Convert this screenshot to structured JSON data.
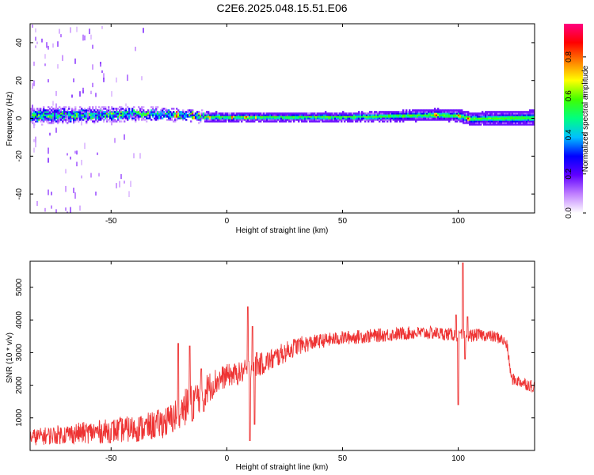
{
  "page": {
    "title": "C2E6.2025.048.15.51.E06"
  },
  "chart_data": [
    {
      "type": "heatmap",
      "xlabel": "Height of straight line (km)",
      "ylabel": "Frequency (Hz)",
      "xlim": [
        -85,
        133
      ],
      "ylim": [
        -50,
        50
      ],
      "x_ticks": [
        -50,
        0,
        50,
        100
      ],
      "y_ticks": [
        -40,
        -20,
        0,
        20,
        40
      ],
      "colorbar": {
        "label": "Normalized spectral amplitude",
        "range": [
          0,
          0.97
        ],
        "ticks": [
          0.0,
          0.2,
          0.4,
          0.6,
          0.8
        ],
        "colors": [
          "#ffffff",
          "#c080ff",
          "#6000ff",
          "#0000ff",
          "#00c0ff",
          "#00ff80",
          "#40ff00",
          "#ffff00",
          "#ff8000",
          "#ff0000",
          "#ff0080"
        ]
      },
      "band": {
        "center_hz": [
          [
            -85,
            1
          ],
          [
            -60,
            1.5
          ],
          [
            -40,
            2
          ],
          [
            -20,
            1.5
          ],
          [
            -10,
            0.5
          ],
          [
            0,
            0.3
          ],
          [
            30,
            0.3
          ],
          [
            60,
            0.5
          ],
          [
            90,
            1.5
          ],
          [
            100,
            1
          ],
          [
            105,
            -0.5
          ],
          [
            133,
            0
          ]
        ],
        "halfwidth_hz": [
          [
            -85,
            6
          ],
          [
            -50,
            5
          ],
          [
            -20,
            4
          ],
          [
            0,
            3
          ],
          [
            50,
            3
          ],
          [
            100,
            4
          ],
          [
            133,
            5
          ]
        ],
        "hotspots": [
          {
            "x": -80,
            "f": 0,
            "amp": 0.45
          },
          {
            "x": -60,
            "f": 2,
            "amp": 0.5
          },
          {
            "x": -40,
            "f": 2,
            "amp": 0.55
          },
          {
            "x": -35,
            "f": 1,
            "amp": 0.7
          },
          {
            "x": -22,
            "f": 1,
            "amp": 0.85
          },
          {
            "x": -15,
            "f": 1,
            "amp": 0.9
          },
          {
            "x": -8,
            "f": -0.5,
            "amp": 0.9
          },
          {
            "x": 2,
            "f": 0,
            "amp": 0.85
          },
          {
            "x": 8,
            "f": 1,
            "amp": 0.9
          },
          {
            "x": 12,
            "f": 0,
            "amp": 0.8
          },
          {
            "x": 90,
            "f": 1,
            "amp": 0.95
          },
          {
            "x": 100,
            "f": 0.5,
            "amp": 0.9
          },
          {
            "x": 104,
            "f": -0.5,
            "amp": 0.9
          }
        ]
      }
    },
    {
      "type": "line",
      "xlabel": "Height of straight line (km)",
      "ylabel": "SNR (10 * v/v)",
      "xlim": [
        -85,
        133
      ],
      "ylim": [
        0,
        5800
      ],
      "x_ticks": [
        -50,
        0,
        50,
        100
      ],
      "y_ticks": [
        1000,
        2000,
        3000,
        4000,
        5000
      ],
      "series": [
        {
          "color": "#ee3333",
          "trend": [
            [
              -85,
              400
            ],
            [
              -70,
              500
            ],
            [
              -50,
              600
            ],
            [
              -35,
              700
            ],
            [
              -25,
              900
            ],
            [
              -20,
              1200
            ],
            [
              -15,
              1500
            ],
            [
              -10,
              1800
            ],
            [
              -5,
              2100
            ],
            [
              0,
              2300
            ],
            [
              5,
              2350
            ],
            [
              10,
              2500
            ],
            [
              15,
              2650
            ],
            [
              20,
              2800
            ],
            [
              25,
              3000
            ],
            [
              30,
              3200
            ],
            [
              40,
              3350
            ],
            [
              50,
              3450
            ],
            [
              60,
              3500
            ],
            [
              70,
              3550
            ],
            [
              80,
              3600
            ],
            [
              90,
              3600
            ],
            [
              98,
              3550
            ],
            [
              102,
              3500
            ],
            [
              110,
              3550
            ],
            [
              118,
              3450
            ],
            [
              121,
              3250
            ],
            [
              123,
              2200
            ],
            [
              133,
              1950
            ]
          ],
          "noise": [
            [
              -85,
              250
            ],
            [
              -30,
              450
            ],
            [
              -15,
              600
            ],
            [
              0,
              350
            ],
            [
              20,
              350
            ],
            [
              40,
              220
            ],
            [
              100,
              200
            ],
            [
              121,
              180
            ],
            [
              133,
              200
            ]
          ],
          "spikes": [
            [
              -21,
              3280
            ],
            [
              -20,
              1100
            ],
            [
              -16,
              3200
            ],
            [
              -15,
              900
            ],
            [
              -11,
              2500
            ],
            [
              -10,
              1200
            ],
            [
              9,
              4400
            ],
            [
              10,
              300
            ],
            [
              11,
              3800
            ],
            [
              12,
              800
            ],
            [
              13,
              3000
            ],
            [
              99,
              4150
            ],
            [
              100,
              1400
            ],
            [
              101,
              3600
            ],
            [
              102,
              5750
            ],
            [
              103,
              2800
            ],
            [
              104,
              4100
            ]
          ]
        }
      ]
    }
  ]
}
